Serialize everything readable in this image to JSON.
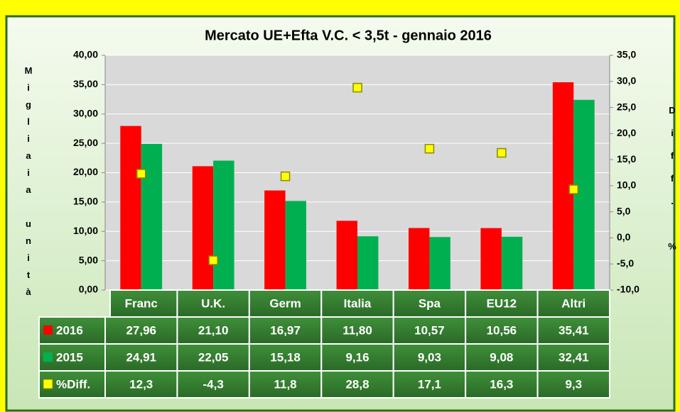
{
  "chart_data": {
    "type": "bar",
    "title": "Mercato UE+Efta V.C. < 3,5t - gennaio 2016",
    "ylabel": "Migliaia unità",
    "y2label": "Diff. %",
    "categories": [
      "Franc",
      "U.K.",
      "Germ",
      "Italia",
      "Spa",
      "EU12",
      "Altri"
    ],
    "series": [
      {
        "name": "2016",
        "color": "#ff0000",
        "values": [
          27.96,
          21.1,
          16.97,
          11.8,
          10.57,
          10.56,
          35.41
        ],
        "value_labels": [
          "27,96",
          "21,10",
          "16,97",
          "11,80",
          "10,57",
          "10,56",
          "35,41"
        ]
      },
      {
        "name": "2015",
        "color": "#00b050",
        "values": [
          24.91,
          22.05,
          15.18,
          9.16,
          9.03,
          9.08,
          32.41
        ],
        "value_labels": [
          "24,91",
          "22,05",
          "15,18",
          "9,16",
          "9,03",
          "9,08",
          "32,41"
        ]
      },
      {
        "name": "%Diff.",
        "color": "#ffff00",
        "axis": "y2",
        "marker": "square",
        "values": [
          12.3,
          -4.3,
          11.8,
          28.8,
          17.1,
          16.3,
          9.3
        ],
        "value_labels": [
          "12,3",
          "-4,3",
          "11,8",
          "28,8",
          "17,1",
          "16,3",
          "9,3"
        ]
      }
    ],
    "ylim": [
      0,
      40
    ],
    "yticks": [
      {
        "value": 0,
        "label": "0,00"
      },
      {
        "value": 5,
        "label": "5,00"
      },
      {
        "value": 10,
        "label": "10,00"
      },
      {
        "value": 15,
        "label": "15,00"
      },
      {
        "value": 20,
        "label": "20,00"
      },
      {
        "value": 25,
        "label": "25,00"
      },
      {
        "value": 30,
        "label": "30,00"
      },
      {
        "value": 35,
        "label": "35,00"
      },
      {
        "value": 40,
        "label": "40,00"
      }
    ],
    "y2lim": [
      -10,
      35
    ],
    "y2ticks": [
      {
        "value": -10,
        "label": "-10,0"
      },
      {
        "value": -5,
        "label": "-5,0"
      },
      {
        "value": 0,
        "label": "0,0"
      },
      {
        "value": 5,
        "label": "5,0"
      },
      {
        "value": 10,
        "label": "10,0"
      },
      {
        "value": 15,
        "label": "15,0"
      },
      {
        "value": 20,
        "label": "20,0"
      },
      {
        "value": 25,
        "label": "25,0"
      },
      {
        "value": 30,
        "label": "30,0"
      },
      {
        "value": 35,
        "label": "35,0"
      }
    ],
    "grid": true
  }
}
